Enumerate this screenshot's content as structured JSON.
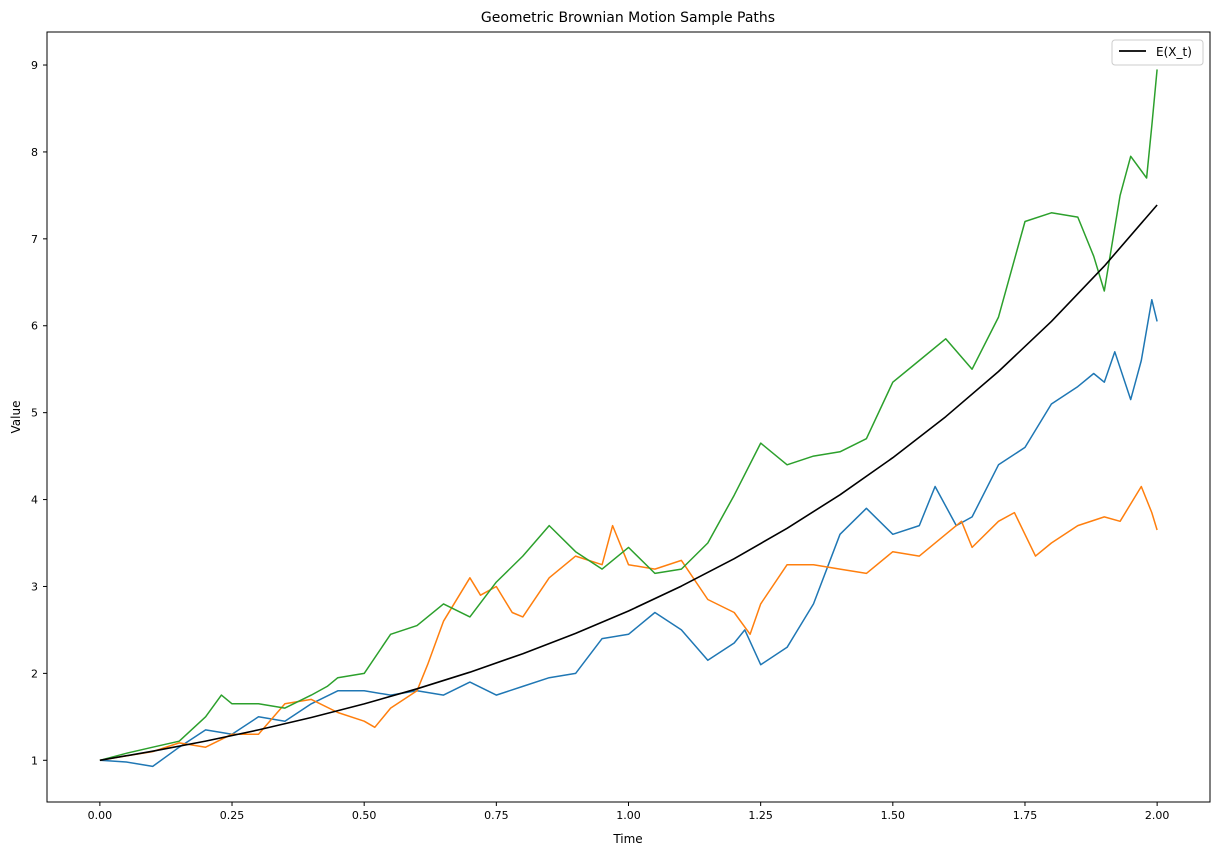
{
  "chart_data": {
    "type": "line",
    "title": "Geometric Brownian Motion Sample Paths",
    "xlabel": "Time",
    "ylabel": "Value",
    "xlim": [
      -0.1,
      2.1
    ],
    "ylim": [
      0.52,
      9.38
    ],
    "xticks": [
      "0.00",
      "0.25",
      "0.50",
      "0.75",
      "1.00",
      "1.25",
      "1.50",
      "1.75",
      "2.00"
    ],
    "yticks": [
      "1",
      "2",
      "3",
      "4",
      "5",
      "6",
      "7",
      "8",
      "9"
    ],
    "grid": false,
    "legend": {
      "placement": "top-right",
      "entries": [
        "E(X_t)"
      ]
    },
    "series": [
      {
        "color": "#1f77b4",
        "points": [
          [
            0,
            1.0
          ],
          [
            0.05,
            0.98
          ],
          [
            0.1,
            0.93
          ],
          [
            0.15,
            1.15
          ],
          [
            0.2,
            1.35
          ],
          [
            0.25,
            1.3
          ],
          [
            0.3,
            1.5
          ],
          [
            0.35,
            1.45
          ],
          [
            0.4,
            1.65
          ],
          [
            0.45,
            1.8
          ],
          [
            0.5,
            1.8
          ],
          [
            0.55,
            1.75
          ],
          [
            0.6,
            1.8
          ],
          [
            0.65,
            1.75
          ],
          [
            0.7,
            1.9
          ],
          [
            0.75,
            1.75
          ],
          [
            0.8,
            1.85
          ],
          [
            0.85,
            1.95
          ],
          [
            0.9,
            2.0
          ],
          [
            0.95,
            2.4
          ],
          [
            1.0,
            2.45
          ],
          [
            1.05,
            2.7
          ],
          [
            1.1,
            2.5
          ],
          [
            1.15,
            2.15
          ],
          [
            1.2,
            2.35
          ],
          [
            1.22,
            2.5
          ],
          [
            1.25,
            2.1
          ],
          [
            1.3,
            2.3
          ],
          [
            1.35,
            2.8
          ],
          [
            1.4,
            3.6
          ],
          [
            1.45,
            3.9
          ],
          [
            1.5,
            3.6
          ],
          [
            1.55,
            3.7
          ],
          [
            1.58,
            4.15
          ],
          [
            1.62,
            3.7
          ],
          [
            1.65,
            3.8
          ],
          [
            1.7,
            4.4
          ],
          [
            1.75,
            4.6
          ],
          [
            1.8,
            5.1
          ],
          [
            1.85,
            5.3
          ],
          [
            1.88,
            5.45
          ],
          [
            1.9,
            5.35
          ],
          [
            1.92,
            5.7
          ],
          [
            1.95,
            5.15
          ],
          [
            1.97,
            5.6
          ],
          [
            1.99,
            6.3
          ],
          [
            2.0,
            6.05
          ]
        ]
      },
      {
        "color": "#ff7f0e",
        "points": [
          [
            0,
            1.0
          ],
          [
            0.05,
            1.05
          ],
          [
            0.1,
            1.1
          ],
          [
            0.15,
            1.2
          ],
          [
            0.2,
            1.15
          ],
          [
            0.25,
            1.3
          ],
          [
            0.3,
            1.3
          ],
          [
            0.35,
            1.65
          ],
          [
            0.4,
            1.7
          ],
          [
            0.45,
            1.55
          ],
          [
            0.5,
            1.45
          ],
          [
            0.52,
            1.38
          ],
          [
            0.55,
            1.6
          ],
          [
            0.6,
            1.8
          ],
          [
            0.62,
            2.1
          ],
          [
            0.65,
            2.6
          ],
          [
            0.7,
            3.1
          ],
          [
            0.72,
            2.9
          ],
          [
            0.75,
            3.0
          ],
          [
            0.78,
            2.7
          ],
          [
            0.8,
            2.65
          ],
          [
            0.85,
            3.1
          ],
          [
            0.9,
            3.35
          ],
          [
            0.95,
            3.25
          ],
          [
            0.97,
            3.7
          ],
          [
            1.0,
            3.25
          ],
          [
            1.05,
            3.2
          ],
          [
            1.1,
            3.3
          ],
          [
            1.15,
            2.85
          ],
          [
            1.2,
            2.7
          ],
          [
            1.23,
            2.45
          ],
          [
            1.25,
            2.8
          ],
          [
            1.3,
            3.25
          ],
          [
            1.35,
            3.25
          ],
          [
            1.4,
            3.2
          ],
          [
            1.45,
            3.15
          ],
          [
            1.5,
            3.4
          ],
          [
            1.55,
            3.35
          ],
          [
            1.6,
            3.6
          ],
          [
            1.63,
            3.75
          ],
          [
            1.65,
            3.45
          ],
          [
            1.7,
            3.75
          ],
          [
            1.73,
            3.85
          ],
          [
            1.77,
            3.35
          ],
          [
            1.8,
            3.5
          ],
          [
            1.85,
            3.7
          ],
          [
            1.9,
            3.8
          ],
          [
            1.93,
            3.75
          ],
          [
            1.97,
            4.15
          ],
          [
            1.99,
            3.85
          ],
          [
            2.0,
            3.65
          ]
        ]
      },
      {
        "color": "#2ca02c",
        "points": [
          [
            0,
            1.0
          ],
          [
            0.05,
            1.08
          ],
          [
            0.1,
            1.15
          ],
          [
            0.15,
            1.22
          ],
          [
            0.2,
            1.5
          ],
          [
            0.23,
            1.75
          ],
          [
            0.25,
            1.65
          ],
          [
            0.3,
            1.65
          ],
          [
            0.35,
            1.6
          ],
          [
            0.4,
            1.75
          ],
          [
            0.43,
            1.85
          ],
          [
            0.45,
            1.95
          ],
          [
            0.5,
            2.0
          ],
          [
            0.55,
            2.45
          ],
          [
            0.6,
            2.55
          ],
          [
            0.65,
            2.8
          ],
          [
            0.7,
            2.65
          ],
          [
            0.75,
            3.05
          ],
          [
            0.8,
            3.35
          ],
          [
            0.85,
            3.7
          ],
          [
            0.9,
            3.4
          ],
          [
            0.95,
            3.2
          ],
          [
            1.0,
            3.45
          ],
          [
            1.05,
            3.15
          ],
          [
            1.1,
            3.2
          ],
          [
            1.15,
            3.5
          ],
          [
            1.2,
            4.05
          ],
          [
            1.25,
            4.65
          ],
          [
            1.3,
            4.4
          ],
          [
            1.35,
            4.5
          ],
          [
            1.4,
            4.55
          ],
          [
            1.45,
            4.7
          ],
          [
            1.5,
            5.35
          ],
          [
            1.55,
            5.6
          ],
          [
            1.6,
            5.85
          ],
          [
            1.65,
            5.5
          ],
          [
            1.7,
            6.1
          ],
          [
            1.75,
            7.2
          ],
          [
            1.8,
            7.3
          ],
          [
            1.85,
            7.25
          ],
          [
            1.88,
            6.8
          ],
          [
            1.9,
            6.4
          ],
          [
            1.93,
            7.5
          ],
          [
            1.95,
            7.95
          ],
          [
            1.98,
            7.7
          ],
          [
            1.99,
            8.3
          ],
          [
            2.0,
            8.95
          ]
        ]
      },
      {
        "name": "E(X_t)",
        "color": "#000000",
        "points": [
          [
            0,
            1
          ],
          [
            0.1,
            1.105
          ],
          [
            0.2,
            1.221
          ],
          [
            0.3,
            1.35
          ],
          [
            0.4,
            1.492
          ],
          [
            0.5,
            1.649
          ],
          [
            0.6,
            1.822
          ],
          [
            0.7,
            2.014
          ],
          [
            0.8,
            2.226
          ],
          [
            0.9,
            2.46
          ],
          [
            1.0,
            2.718
          ],
          [
            1.1,
            3.004
          ],
          [
            1.2,
            3.32
          ],
          [
            1.3,
            3.669
          ],
          [
            1.4,
            4.055
          ],
          [
            1.5,
            4.482
          ],
          [
            1.6,
            4.953
          ],
          [
            1.7,
            5.474
          ],
          [
            1.8,
            6.05
          ],
          [
            1.9,
            6.686
          ],
          [
            2.0,
            7.389
          ]
        ]
      }
    ]
  }
}
